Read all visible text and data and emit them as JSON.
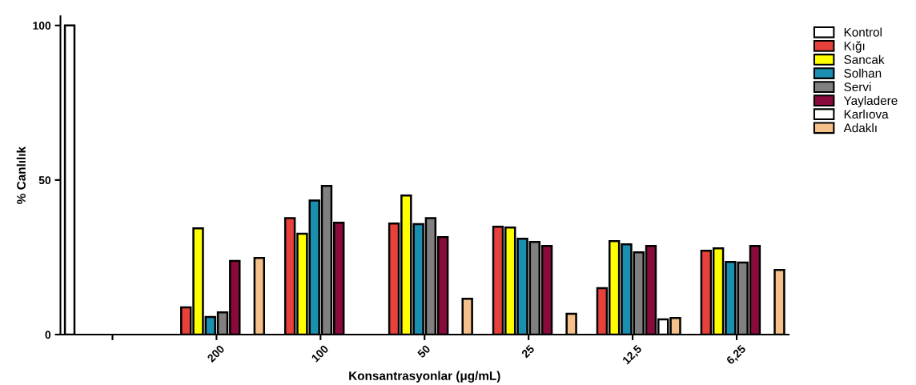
{
  "chart_data": {
    "type": "bar",
    "xlabel": "Konsantrasyonlar (μg/mL)",
    "ylabel": "% Canlılık",
    "categories": [
      null,
      "200",
      "100",
      "50",
      "25",
      "12,5",
      "6,25"
    ],
    "series": [
      {
        "name": "Kontrol",
        "color": "#ffffff",
        "values": [
          100,
          null,
          null,
          null,
          null,
          null,
          null
        ]
      },
      {
        "name": "Kığı",
        "color": "#e8413c",
        "values": [
          null,
          8.8,
          37.7,
          35.9,
          34.9,
          15,
          27.1
        ]
      },
      {
        "name": "Sancak",
        "color": "#ffff00",
        "values": [
          null,
          34.4,
          32.6,
          45,
          34.6,
          30.2,
          27.9
        ]
      },
      {
        "name": "Solhan",
        "color": "#1a8faf",
        "values": [
          null,
          5.7,
          43.4,
          35.7,
          31,
          29.2,
          23.5
        ]
      },
      {
        "name": "Servi",
        "color": "#808080",
        "values": [
          null,
          7.2,
          48.1,
          37.7,
          30,
          26.6,
          23.3
        ]
      },
      {
        "name": "Yayladere",
        "color": "#8b0a3e",
        "values": [
          null,
          23.8,
          36.2,
          31.5,
          28.7,
          28.7,
          28.7
        ]
      },
      {
        "name": "Karlıova",
        "color": "#ffffff",
        "values": [
          null,
          null,
          null,
          null,
          null,
          4.9,
          null
        ]
      },
      {
        "name": "Adaklı",
        "color": "#f5c08a",
        "values": [
          null,
          24.8,
          null,
          11.6,
          6.7,
          5.4,
          20.9
        ]
      }
    ],
    "ylim": [
      0,
      103
    ],
    "yticks": [
      0,
      50,
      100
    ],
    "grid": false,
    "legend": "top right"
  }
}
